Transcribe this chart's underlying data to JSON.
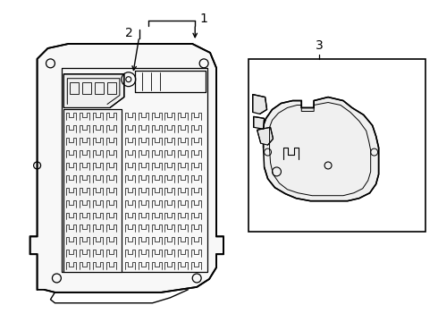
{
  "background_color": "#ffffff",
  "line_color": "#000000",
  "label1": "1",
  "label2": "2",
  "label3": "3",
  "figsize": [
    4.9,
    3.6
  ],
  "dpi": 100
}
